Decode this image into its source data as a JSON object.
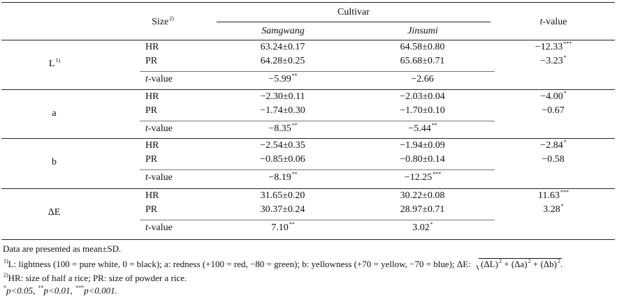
{
  "header": {
    "size_label": "Size",
    "size_sup": "2)",
    "cultivar": "Cultivar",
    "cultivar1": "Samgwang",
    "cultivar2": "Jinsumi",
    "tvalue_prefix": "t",
    "tvalue_suffix": "-value"
  },
  "groups": [
    {
      "param": "L",
      "param_sup": "1)",
      "rows": [
        {
          "size": "HR",
          "c1": "63.24±0.17",
          "c1s": "",
          "c2": "64.58±0.80",
          "c2s": "",
          "t": "−12.33",
          "ts": "***"
        },
        {
          "size": "PR",
          "c1": "64.28±0.25",
          "c1s": "",
          "c2": "65.68±0.71",
          "c2s": "",
          "t": "−3.23",
          "ts": "*"
        }
      ],
      "tval": {
        "c1": "−5.99",
        "c1s": "**",
        "c2": "−2.66",
        "c2s": ""
      }
    },
    {
      "param": "a",
      "param_sup": "",
      "rows": [
        {
          "size": "HR",
          "c1": "−2.30±0.11",
          "c1s": "",
          "c2": "−2.03±0.04",
          "c2s": "",
          "t": "−4.00",
          "ts": "*"
        },
        {
          "size": "PR",
          "c1": "−1.74±0.30",
          "c1s": "",
          "c2": "−1.70±0.10",
          "c2s": "",
          "t": "−0.67",
          "ts": ""
        }
      ],
      "tval": {
        "c1": "−8.35",
        "c1s": "**",
        "c2": "−5.44",
        "c2s": "**"
      }
    },
    {
      "param": "b",
      "param_sup": "",
      "rows": [
        {
          "size": "HR",
          "c1": "−2.54±0.35",
          "c1s": "",
          "c2": "−1.94±0.09",
          "c2s": "",
          "t": "−2.84",
          "ts": "*"
        },
        {
          "size": "PR",
          "c1": "−0.85±0.06",
          "c1s": "",
          "c2": "−0.80±0.14",
          "c2s": "",
          "t": "−0.58",
          "ts": ""
        }
      ],
      "tval": {
        "c1": "−8.19",
        "c1s": "**",
        "c2": "−12.25",
        "c2s": "***"
      }
    },
    {
      "param": "ΔE",
      "param_sup": "",
      "rows": [
        {
          "size": "HR",
          "c1": "31.65±0.20",
          "c1s": "",
          "c2": "30.22±0.08",
          "c2s": "",
          "t": "11.63",
          "ts": "***"
        },
        {
          "size": "PR",
          "c1": "30.37±0.24",
          "c1s": "",
          "c2": "28.97±0.71",
          "c2s": "",
          "t": "3.28",
          "ts": "*"
        }
      ],
      "tval": {
        "c1": "7.10",
        "c1s": "**",
        "c2": "3.02",
        "c2s": "*"
      }
    }
  ],
  "notes": {
    "n0": "Data are presented as mean±SD.",
    "n1_sup": "1)",
    "n1_text": "L: lightness (100 = pure white, 0 = black); a: redness (+100 = red, −80 = green); b: yellowness (+70 = yellow, −70 = blue); ΔE:",
    "n1_formula": "(ΔL)",
    "n1_formula2": " + (Δa)",
    "n1_formula3": " + (Δb)",
    "n1_exp": "2",
    "n2_sup": "2)",
    "n2_text": "HR: size of half a rice; PR: size of powder a rice.",
    "n3_s1": "*",
    "n3_p1": "p<0.05, ",
    "n3_s2": "**",
    "n3_p2": "p<0.01, ",
    "n3_s3": "***",
    "n3_p3": "p<0.001."
  }
}
